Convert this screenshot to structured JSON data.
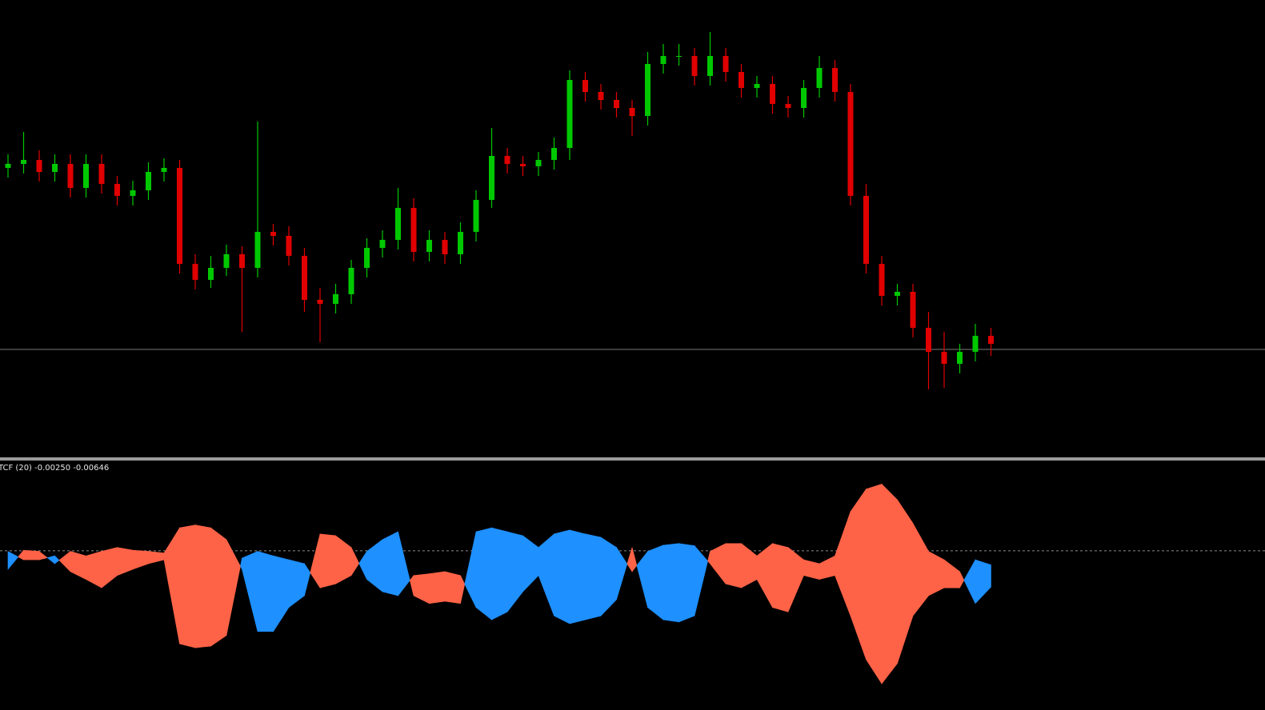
{
  "chart_data": [
    {
      "type": "candlestick",
      "open": [
        390,
        395,
        400,
        385,
        395,
        365,
        395,
        370,
        355,
        362,
        385,
        390,
        270,
        250,
        265,
        282,
        265,
        310,
        305,
        280,
        225,
        220,
        232,
        265,
        290,
        300,
        340,
        285,
        300,
        282,
        310,
        350,
        405,
        395,
        392,
        400,
        415,
        500,
        485,
        475,
        465,
        455,
        520,
        530,
        530,
        505,
        530,
        510,
        490,
        495,
        470,
        465,
        490,
        515,
        485,
        355,
        270,
        230,
        235,
        190,
        160,
        145,
        160,
        180
      ],
      "high": [
        407,
        435,
        412,
        407,
        407,
        407,
        407,
        380,
        374,
        397,
        402,
        400,
        282,
        280,
        294,
        292,
        448,
        320,
        317,
        290,
        240,
        245,
        275,
        302,
        312,
        365,
        352,
        312,
        310,
        322,
        362,
        440,
        415,
        405,
        410,
        428,
        512,
        510,
        495,
        485,
        475,
        535,
        545,
        545,
        540,
        560,
        540,
        520,
        505,
        505,
        480,
        500,
        530,
        525,
        495,
        370,
        280,
        245,
        245,
        210,
        185,
        170,
        195,
        190
      ],
      "low": [
        378,
        383,
        373,
        373,
        353,
        353,
        358,
        343,
        343,
        350,
        373,
        258,
        238,
        240,
        255,
        185,
        253,
        293,
        268,
        210,
        172,
        208,
        220,
        253,
        278,
        288,
        273,
        273,
        270,
        270,
        298,
        340,
        383,
        380,
        380,
        388,
        400,
        473,
        463,
        453,
        430,
        443,
        508,
        518,
        493,
        493,
        498,
        478,
        478,
        458,
        453,
        453,
        478,
        473,
        343,
        258,
        218,
        218,
        178,
        113,
        115,
        133,
        148,
        155
      ],
      "close": [
        395,
        400,
        385,
        395,
        365,
        395,
        370,
        355,
        362,
        385,
        390,
        270,
        250,
        265,
        282,
        265,
        310,
        305,
        280,
        225,
        220,
        232,
        265,
        290,
        300,
        340,
        285,
        300,
        282,
        310,
        350,
        405,
        395,
        392,
        400,
        415,
        500,
        485,
        475,
        465,
        455,
        520,
        530,
        530,
        505,
        530,
        510,
        490,
        495,
        470,
        465,
        490,
        515,
        485,
        355,
        270,
        230,
        235,
        190,
        160,
        145,
        160,
        180,
        170
      ],
      "up_color": "#00c800",
      "down_color": "#e00000",
      "ylim": [
        28,
        600
      ],
      "price_line": 163,
      "price_line_color": "#7a7a7a"
    },
    {
      "type": "band",
      "title": "TCF (20) -0.00250 -0.00646",
      "series": [
        {
          "color": "#1e90ff",
          "values": [
            -0.0001,
            -0.0016,
            -0.0016,
            -0.0009,
            -0.0037,
            -0.0051,
            -0.0066,
            -0.0044,
            -0.0033,
            -0.0023,
            -0.0016,
            -0.0166,
            -0.0173,
            -0.017,
            -0.0151,
            -0.0013,
            -0.0001,
            -0.0009,
            -0.0016,
            -0.0023,
            -0.0066,
            -0.0059,
            -0.0044,
            -0.0001,
            0.002,
            0.0034,
            -0.008,
            -0.0094,
            -0.009,
            -0.0094,
            0.0034,
            0.0041,
            0.0034,
            0.0027,
            0.0006,
            0.003,
            0.0037,
            0.003,
            0.0024,
            0.0006,
            -0.0037,
            -0.0001,
            0.001,
            0.0013,
            0.0009,
            -0.0023,
            -0.0059,
            -0.0066,
            -0.0051,
            -0.0101,
            -0.0109,
            -0.0044,
            -0.0051,
            -0.0044,
            -0.0116,
            -0.0194,
            -0.0237,
            -0.0201,
            -0.0116,
            -0.008,
            -0.0066,
            -0.0066,
            -0.0016,
            -0.0025
          ]
        },
        {
          "color": "#ff6347",
          "values": [
            -0.0033,
            0.0001,
            -0.0001,
            -0.0023,
            -0.0001,
            -0.0009,
            -0.0001,
            0.0006,
            0.0001,
            -0.0001,
            -0.0004,
            0.0041,
            0.0046,
            0.0041,
            0.002,
            -0.0033,
            -0.0144,
            -0.0144,
            -0.0101,
            -0.008,
            0.003,
            0.0027,
            0.0006,
            -0.0051,
            -0.0073,
            -0.008,
            -0.0044,
            -0.0041,
            -0.0037,
            -0.0044,
            -0.0101,
            -0.0123,
            -0.0109,
            -0.0073,
            -0.0044,
            -0.0116,
            -0.013,
            -0.0123,
            -0.0116,
            -0.0087,
            0.0006,
            -0.0101,
            -0.0123,
            -0.0127,
            -0.0116,
            -0.0001,
            0.0013,
            0.0013,
            -0.0009,
            0.0013,
            0.0006,
            -0.0016,
            -0.0023,
            -0.0009,
            0.007,
            0.011,
            0.0119,
            0.0091,
            0.0049,
            -0.0001,
            -0.0016,
            -0.0037,
            -0.0094,
            -0.00646
          ]
        }
      ],
      "ylim": [
        -0.0284,
        0.0161
      ],
      "levels": [
        0
      ],
      "level_color": "#8c8c8c"
    }
  ]
}
